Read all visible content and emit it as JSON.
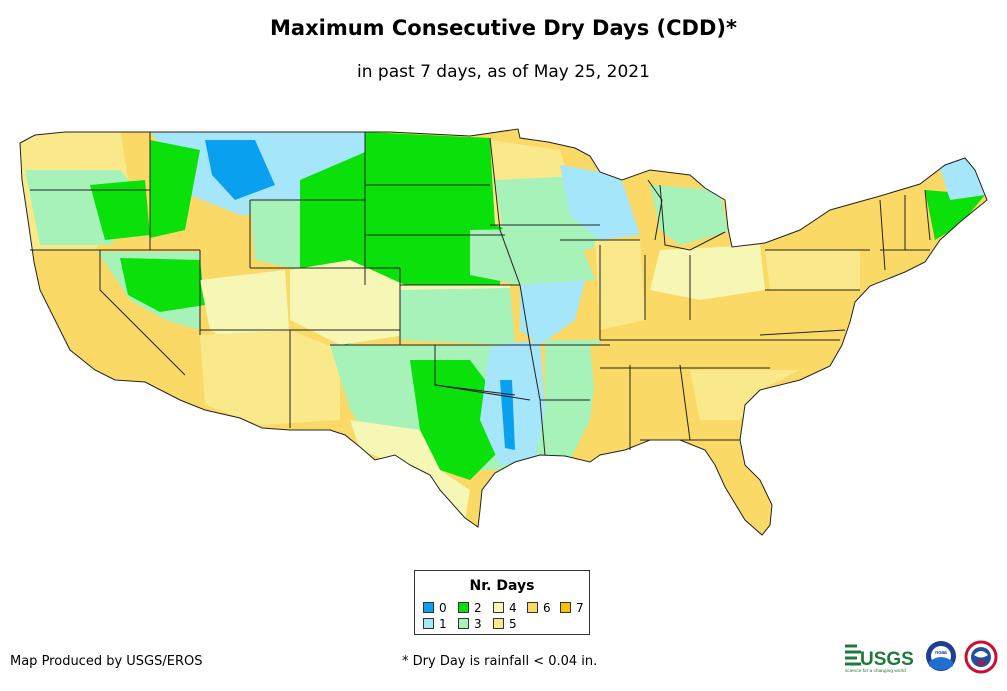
{
  "header": {
    "title": "Maximum Consecutive Dry Days (CDD)*",
    "subtitle": "in past 7 days, as of May 25, 2021"
  },
  "legend": {
    "title": "Nr. Days",
    "items": [
      {
        "label": "0",
        "color": "#0aa0f0"
      },
      {
        "label": "1",
        "color": "#a6e6fa"
      },
      {
        "label": "2",
        "color": "#0ae00a"
      },
      {
        "label": "3",
        "color": "#a6f2b8"
      },
      {
        "label": "4",
        "color": "#f7f7b5"
      },
      {
        "label": "5",
        "color": "#fae98a"
      },
      {
        "label": "6",
        "color": "#fad966"
      },
      {
        "label": "7",
        "color": "#f8c100"
      }
    ]
  },
  "footer": {
    "credit": "Map Produced by USGS/EROS",
    "footnote": "* Dry Day is rainfall < 0.04 in.",
    "usgs_logo_text": "USGS",
    "usgs_tagline": "science for a changing world",
    "noaa_logo_text": "noaa"
  },
  "icons": {
    "usgs": "usgs-logo-icon",
    "noaa": "noaa-logo-icon",
    "nws": "nws-logo-icon"
  }
}
